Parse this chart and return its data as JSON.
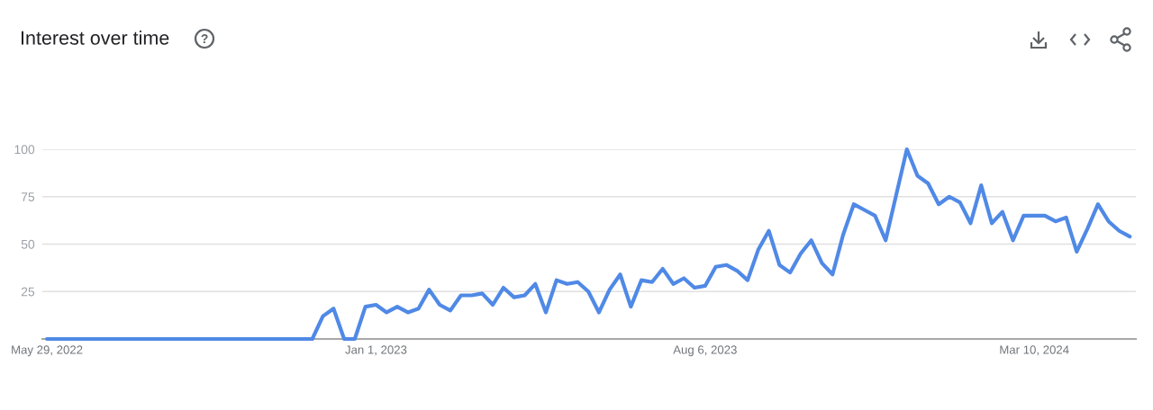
{
  "chart_data": {
    "type": "line",
    "title": "Interest over time",
    "x": [
      "2022-05-29",
      "2022-06-05",
      "2022-06-12",
      "2022-06-19",
      "2022-06-26",
      "2022-07-03",
      "2022-07-10",
      "2022-07-17",
      "2022-07-24",
      "2022-07-31",
      "2022-08-07",
      "2022-08-14",
      "2022-08-21",
      "2022-08-28",
      "2022-09-04",
      "2022-09-11",
      "2022-09-18",
      "2022-09-25",
      "2022-10-02",
      "2022-10-09",
      "2022-10-16",
      "2022-10-23",
      "2022-10-30",
      "2022-11-06",
      "2022-11-13",
      "2022-11-20",
      "2022-11-27",
      "2022-12-04",
      "2022-12-11",
      "2022-12-18",
      "2022-12-25",
      "2023-01-01",
      "2023-01-08",
      "2023-01-15",
      "2023-01-22",
      "2023-01-29",
      "2023-02-05",
      "2023-02-12",
      "2023-02-19",
      "2023-02-26",
      "2023-03-05",
      "2023-03-12",
      "2023-03-19",
      "2023-03-26",
      "2023-04-02",
      "2023-04-09",
      "2023-04-16",
      "2023-04-23",
      "2023-04-30",
      "2023-05-07",
      "2023-05-14",
      "2023-05-21",
      "2023-05-28",
      "2023-06-04",
      "2023-06-11",
      "2023-06-18",
      "2023-06-25",
      "2023-07-02",
      "2023-07-09",
      "2023-07-16",
      "2023-07-23",
      "2023-07-30",
      "2023-08-06",
      "2023-08-13",
      "2023-08-20",
      "2023-08-27",
      "2023-09-03",
      "2023-09-10",
      "2023-09-17",
      "2023-09-24",
      "2023-10-01",
      "2023-10-08",
      "2023-10-15",
      "2023-10-22",
      "2023-10-29",
      "2023-11-05",
      "2023-11-12",
      "2023-11-19",
      "2023-11-26",
      "2023-12-03",
      "2023-12-10",
      "2023-12-17",
      "2023-12-24",
      "2023-12-31",
      "2024-01-07",
      "2024-01-14",
      "2024-01-21",
      "2024-01-28",
      "2024-02-04",
      "2024-02-11",
      "2024-02-18",
      "2024-02-25",
      "2024-03-03",
      "2024-03-10",
      "2024-03-17",
      "2024-03-24",
      "2024-03-31",
      "2024-04-07",
      "2024-04-14",
      "2024-04-21",
      "2024-04-28",
      "2024-05-05",
      "2024-05-12"
    ],
    "values": [
      0,
      0,
      0,
      0,
      0,
      0,
      0,
      0,
      0,
      0,
      0,
      0,
      0,
      0,
      0,
      0,
      0,
      0,
      0,
      0,
      0,
      0,
      0,
      0,
      0,
      0,
      12,
      16,
      0,
      0,
      17,
      18,
      14,
      17,
      14,
      16,
      26,
      18,
      15,
      23,
      23,
      24,
      18,
      27,
      22,
      23,
      29,
      14,
      31,
      29,
      30,
      25,
      14,
      26,
      34,
      17,
      31,
      30,
      37,
      29,
      32,
      27,
      28,
      38,
      39,
      36,
      31,
      47,
      57,
      39,
      35,
      45,
      52,
      40,
      34,
      55,
      71,
      68,
      65,
      52,
      76,
      100,
      86,
      82,
      71,
      75,
      72,
      61,
      81,
      61,
      67,
      52,
      65,
      65,
      65,
      62,
      64,
      46,
      58,
      71,
      62,
      57,
      54
    ],
    "color": "#5089e6",
    "xlim": [
      "2022-05-26",
      "2024-05-16"
    ],
    "xticks": [
      {
        "value": "2022-05-29",
        "label": "May 29, 2022"
      },
      {
        "value": "2023-01-01",
        "label": "Jan 1, 2023"
      },
      {
        "value": "2023-08-06",
        "label": "Aug 6, 2023"
      },
      {
        "value": "2024-03-10",
        "label": "Mar 10, 2024"
      }
    ],
    "ylim": [
      0,
      100
    ],
    "yticks": [
      25,
      50,
      75,
      100
    ],
    "grid": "y"
  }
}
